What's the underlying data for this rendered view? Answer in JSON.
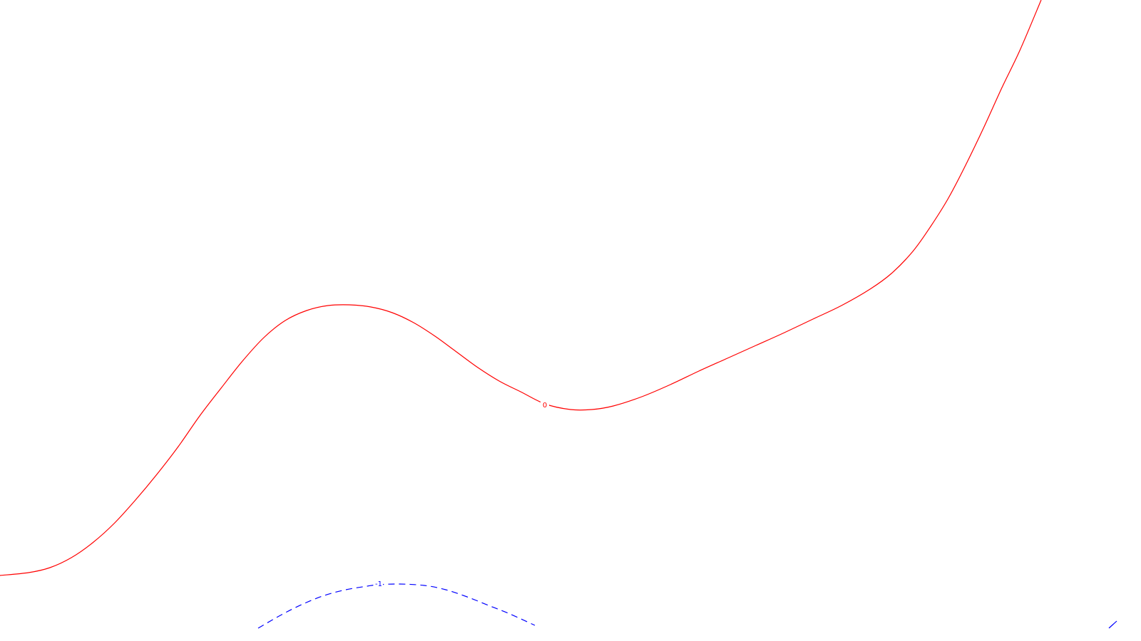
{
  "chart_data": {
    "type": "line",
    "title": "",
    "xlabel": "",
    "ylabel": "",
    "grid": false,
    "legend": "none",
    "series": [
      {
        "level": "0",
        "color": "#ff0000",
        "style": "solid",
        "points": [
          [
            0,
            808
          ],
          [
            40,
            804
          ],
          [
            70,
            797
          ],
          [
            100,
            783
          ],
          [
            130,
            762
          ],
          [
            160,
            735
          ],
          [
            190,
            702
          ],
          [
            220,
            666
          ],
          [
            250,
            627
          ],
          [
            280,
            584
          ],
          [
            310,
            545
          ],
          [
            340,
            507
          ],
          [
            370,
            474
          ],
          [
            400,
            450
          ],
          [
            430,
            436
          ],
          [
            460,
            429
          ],
          [
            490,
            428
          ],
          [
            520,
            431
          ],
          [
            550,
            439
          ],
          [
            580,
            453
          ],
          [
            610,
            472
          ],
          [
            640,
            494
          ],
          [
            670,
            516
          ],
          [
            700,
            535
          ],
          [
            730,
            550
          ],
          [
            764,
            567
          ],
          [
            800,
            575
          ],
          [
            830,
            575
          ],
          [
            860,
            570
          ],
          [
            900,
            557
          ],
          [
            940,
            540
          ],
          [
            980,
            521
          ],
          [
            1020,
            503
          ],
          [
            1060,
            485
          ],
          [
            1100,
            467
          ],
          [
            1140,
            448
          ],
          [
            1180,
            429
          ],
          [
            1220,
            406
          ],
          [
            1250,
            384
          ],
          [
            1280,
            353
          ],
          [
            1305,
            318
          ],
          [
            1330,
            278
          ],
          [
            1355,
            230
          ],
          [
            1380,
            178
          ],
          [
            1405,
            123
          ],
          [
            1430,
            71
          ],
          [
            1460,
            0
          ]
        ],
        "label_at": [
          764,
          569
        ]
      },
      {
        "level": "-1",
        "color": "#0000ff",
        "style": "dashed",
        "points": [
          [
            362,
            882
          ],
          [
            395,
            863
          ],
          [
            425,
            848
          ],
          [
            455,
            836
          ],
          [
            485,
            828
          ],
          [
            515,
            823
          ],
          [
            530,
            821
          ],
          [
            560,
            820
          ],
          [
            595,
            822
          ],
          [
            625,
            828
          ],
          [
            655,
            838
          ],
          [
            685,
            850
          ],
          [
            715,
            862
          ],
          [
            750,
            878
          ]
        ],
        "label_at": [
          531,
          820
        ]
      },
      {
        "level": "",
        "color": "#0000ff",
        "style": "solid",
        "points": [
          [
            1555,
            882
          ],
          [
            1566,
            872
          ]
        ]
      }
    ]
  }
}
